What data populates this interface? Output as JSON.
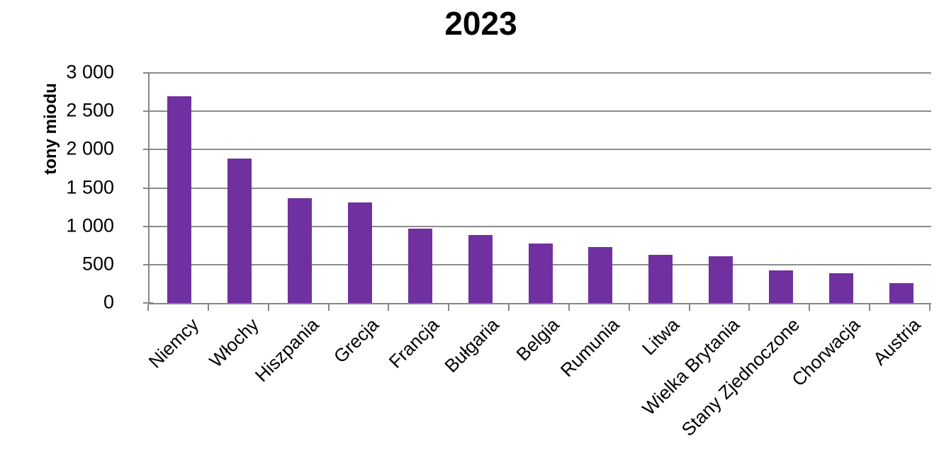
{
  "chart_data": {
    "type": "bar",
    "title": "2023",
    "ylabel": "tony miodu",
    "xlabel": "",
    "categories": [
      "Niemcy",
      "Włochy",
      "Hiszpania",
      "Grecja",
      "Francja",
      "Bułgaria",
      "Belgia",
      "Rumunia",
      "Litwa",
      "Wielka Brytania",
      "Stany Zjednoczone",
      "Chorwacja",
      "Austria"
    ],
    "values": [
      2700,
      1885,
      1370,
      1315,
      965,
      890,
      775,
      725,
      630,
      610,
      425,
      390,
      260
    ],
    "ylim": [
      0,
      3000
    ],
    "y_tick_values": [
      0,
      500,
      1000,
      1500,
      2000,
      2500,
      3000
    ],
    "y_tick_labels": [
      "0",
      "500",
      "1 000",
      "1 500",
      "2 000",
      "2 500",
      "3 000"
    ],
    "grid": "horizontal",
    "legend": "none",
    "bar_color": "#7030A0",
    "axis_color": "#878787",
    "gridline_color": "#8C8C8C",
    "text_color": "#000000"
  }
}
